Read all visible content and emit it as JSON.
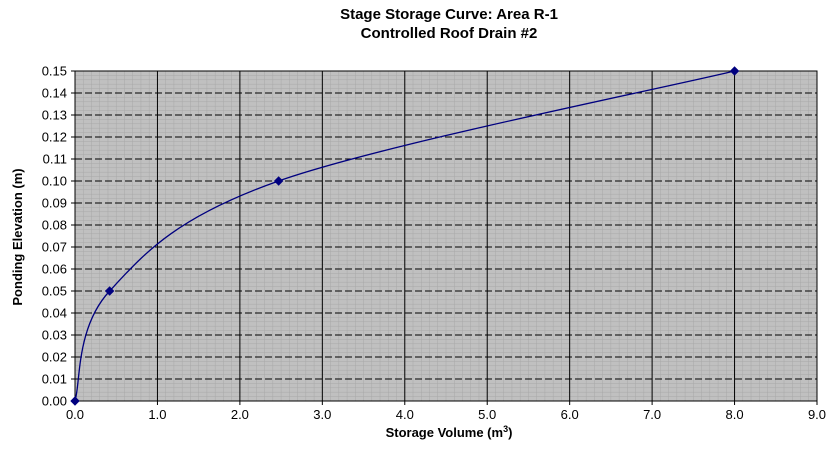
{
  "chart_data": {
    "type": "line",
    "title": "Stage Storage Curve: Area R-1",
    "subtitle": "Controlled Roof Drain #2",
    "xlabel": "Storage Volume (m",
    "xlabel_sup": "3",
    "xlabel_close": ")",
    "ylabel": "Ponding Elevation (m)",
    "xlim": [
      0,
      9
    ],
    "ylim": [
      0,
      0.15
    ],
    "x_ticks": [
      "0.0",
      "1.0",
      "2.0",
      "3.0",
      "4.0",
      "5.0",
      "6.0",
      "7.0",
      "8.0",
      "9.0"
    ],
    "y_ticks": [
      "0.00",
      "0.01",
      "0.02",
      "0.03",
      "0.04",
      "0.05",
      "0.06",
      "0.07",
      "0.08",
      "0.09",
      "0.10",
      "0.11",
      "0.12",
      "0.13",
      "0.14",
      "0.15"
    ],
    "grid": true,
    "legend": "none",
    "series": [
      {
        "x": [
          0.0,
          0.42,
          2.47,
          8.0
        ],
        "y": [
          0.0,
          0.05,
          0.1,
          0.15
        ],
        "color": "#00007f",
        "marker": "diamond",
        "smooth": true
      }
    ],
    "colors": {
      "plot_background": "#c0c0c0",
      "fine_grid": "#a8a8a8",
      "major_grid": "#000000",
      "line": "#00007f"
    }
  }
}
